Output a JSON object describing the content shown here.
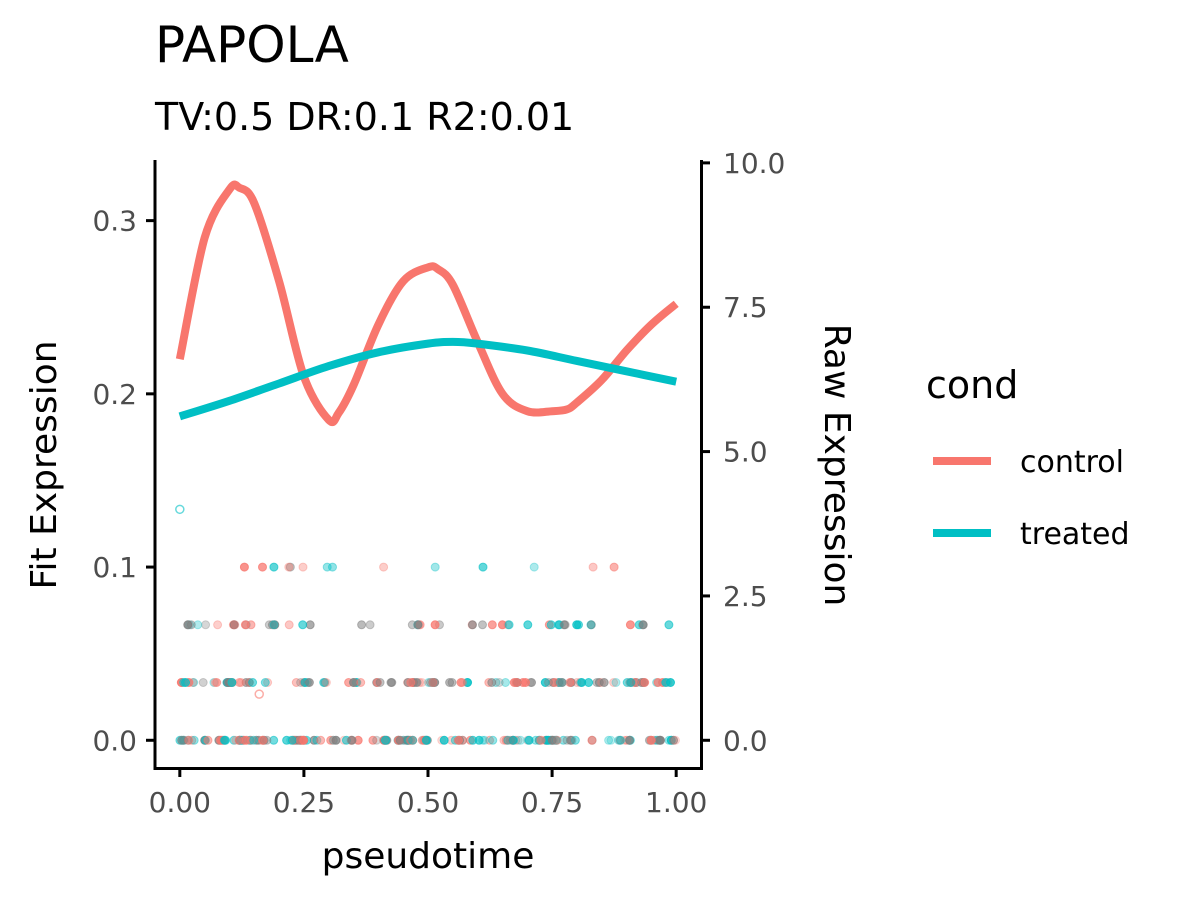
{
  "chart_data": {
    "type": "line",
    "title": "PAPOLA",
    "subtitle": "TV:0.5 DR:0.1 R2:0.01",
    "xlabel": "pseudotime",
    "ylabel": "Fit Expression",
    "y2label": "Raw Expression",
    "xlim": [
      -0.05,
      1.05
    ],
    "ylim": [
      -0.016,
      0.335
    ],
    "y2lim": [
      -0.48,
      10.05
    ],
    "x_ticks": [
      "0.00",
      "0.25",
      "0.50",
      "0.75",
      "1.00"
    ],
    "y_ticks": [
      "0.0",
      "0.1",
      "0.2",
      "0.3"
    ],
    "y2_ticks": [
      "0.0",
      "2.5",
      "5.0",
      "7.5",
      "10.0"
    ],
    "legend": {
      "title": "cond",
      "position": "right",
      "entries": [
        "control",
        "treated"
      ]
    },
    "colors": {
      "control": "#F8766D",
      "treated": "#00BFC4",
      "overlap": "#7f7f7f"
    },
    "series": [
      {
        "name": "control",
        "x": [
          0,
          0.05,
          0.1,
          0.12,
          0.15,
          0.2,
          0.25,
          0.3,
          0.32,
          0.35,
          0.4,
          0.45,
          0.5,
          0.52,
          0.55,
          0.6,
          0.65,
          0.7,
          0.75,
          0.78,
          0.8,
          0.85,
          0.9,
          0.95,
          1.0
        ],
        "values": [
          0.22,
          0.29,
          0.318,
          0.319,
          0.31,
          0.265,
          0.21,
          0.185,
          0.189,
          0.205,
          0.24,
          0.265,
          0.273,
          0.272,
          0.263,
          0.23,
          0.2,
          0.19,
          0.19,
          0.191,
          0.195,
          0.208,
          0.225,
          0.24,
          0.252
        ]
      },
      {
        "name": "treated",
        "x": [
          0,
          0.1,
          0.2,
          0.3,
          0.4,
          0.5,
          0.55,
          0.6,
          0.7,
          0.8,
          0.9,
          1.0
        ],
        "values": [
          0.187,
          0.196,
          0.206,
          0.216,
          0.224,
          0.229,
          0.23,
          0.229,
          0.225,
          0.219,
          0.213,
          0.207
        ]
      }
    ],
    "raw_points": {
      "levels": [
        0,
        1,
        2,
        3
      ],
      "notes_outliers": [
        {
          "x": 0.0,
          "y": 4.0,
          "cond": "treated"
        },
        {
          "x": 0.16,
          "y": 0.8,
          "cond": "control"
        }
      ]
    }
  }
}
